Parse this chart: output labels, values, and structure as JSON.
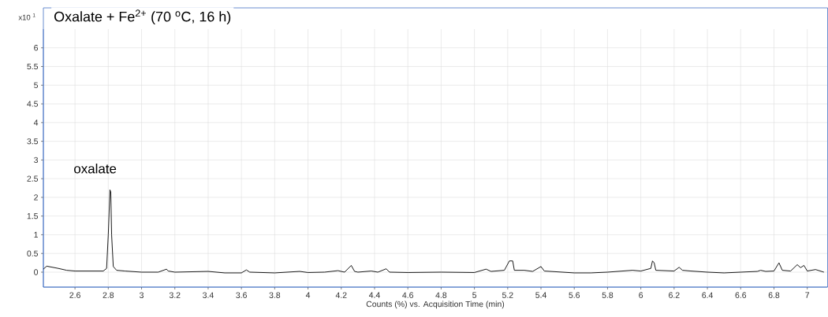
{
  "chart_data": {
    "type": "line",
    "title": "Oxalate + Fe$^{2+}$ (70 $^{o}$C, 16 h)",
    "xlabel": "Counts (%) vs. Acquisition Time (min)",
    "ylabel": "x10 $^{1}$",
    "annotations": [
      "oxalate"
    ],
    "x": [
      2.41,
      2.43,
      2.5,
      2.55,
      2.6,
      2.7,
      2.77,
      2.79,
      2.8,
      2.81,
      2.815,
      2.82,
      2.83,
      2.85,
      2.9,
      3.0,
      3.1,
      3.15,
      3.16,
      3.2,
      3.4,
      3.5,
      3.6,
      3.63,
      3.65,
      3.8,
      3.95,
      4.0,
      4.1,
      4.18,
      4.22,
      4.26,
      4.28,
      4.3,
      4.38,
      4.42,
      4.47,
      4.49,
      4.6,
      4.8,
      5.0,
      5.07,
      5.1,
      5.18,
      5.21,
      5.23,
      5.24,
      5.3,
      5.35,
      5.4,
      5.42,
      5.6,
      5.7,
      5.8,
      5.95,
      6.0,
      6.06,
      6.07,
      6.08,
      6.09,
      6.2,
      6.23,
      6.25,
      6.3,
      6.4,
      6.5,
      6.6,
      6.7,
      6.72,
      6.75,
      6.8,
      6.83,
      6.85,
      6.9,
      6.94,
      6.96,
      6.98,
      7.0,
      7.05,
      7.1
    ],
    "values": [
      0.08,
      0.16,
      0.1,
      0.05,
      0.03,
      0.03,
      0.03,
      0.1,
      1.0,
      2.2,
      2.15,
      1.0,
      0.15,
      0.05,
      0.03,
      0.0,
      0.0,
      0.08,
      0.03,
      0.0,
      0.02,
      -0.02,
      -0.02,
      0.06,
      0.0,
      -0.02,
      0.02,
      -0.01,
      0.0,
      0.04,
      0.0,
      0.18,
      0.02,
      0.0,
      0.03,
      0.0,
      0.09,
      0.0,
      -0.01,
      0.0,
      -0.01,
      0.08,
      0.02,
      0.05,
      0.3,
      0.3,
      0.05,
      0.05,
      0.02,
      0.15,
      0.03,
      -0.02,
      -0.02,
      0.0,
      0.05,
      0.03,
      0.1,
      0.3,
      0.25,
      0.05,
      0.03,
      0.13,
      0.05,
      0.03,
      0.0,
      -0.02,
      0.0,
      0.02,
      0.05,
      0.02,
      0.03,
      0.25,
      0.05,
      0.03,
      0.2,
      0.12,
      0.18,
      0.03,
      0.07,
      0.0
    ],
    "color": "#000000",
    "marker": "none",
    "grid": true,
    "xlim": [
      2.41,
      7.12
    ],
    "ylim": [
      -0.4,
      6.5
    ],
    "xticks": [
      2.6,
      2.8,
      3,
      3.2,
      3.4,
      3.6,
      3.8,
      4,
      4.2,
      4.4,
      4.6,
      4.8,
      5,
      5.2,
      5.4,
      5.6,
      5.8,
      6,
      6.2,
      6.4,
      6.6,
      6.8,
      7
    ],
    "yticks": [
      0,
      0.5,
      1,
      1.5,
      2,
      2.5,
      3,
      3.5,
      4,
      4.5,
      5,
      5.5,
      6
    ]
  }
}
